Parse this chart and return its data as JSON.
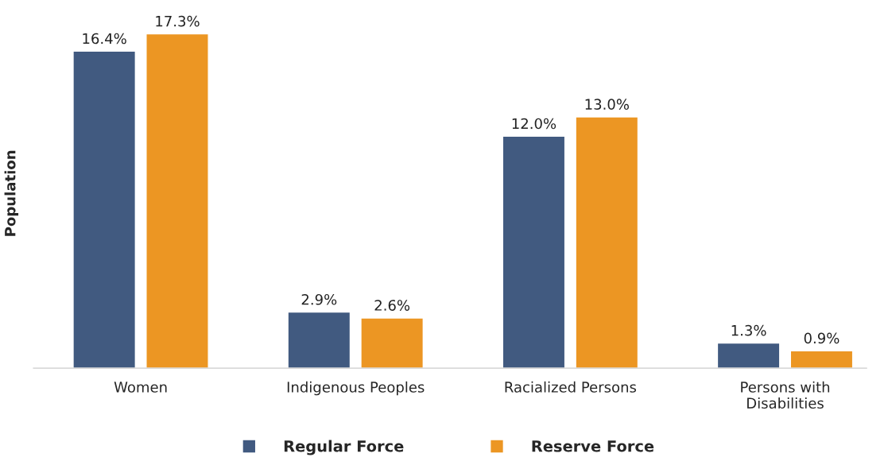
{
  "chart_data": {
    "type": "bar",
    "ylabel": "Population",
    "categories": [
      "Women",
      "Indigenous Peoples",
      "Racialized Persons",
      "Persons with\nDisabilities"
    ],
    "series": [
      {
        "name": "Regular Force",
        "color": "#415a80",
        "values": [
          16.4,
          2.9,
          12.0,
          1.3
        ],
        "value_labels": [
          "16.4%",
          "2.9%",
          "12.0%",
          "1.3%"
        ]
      },
      {
        "name": "Reserve Force",
        "color": "#ec9623",
        "values": [
          17.3,
          2.6,
          13.0,
          0.9
        ],
        "value_labels": [
          "17.3%",
          "2.6%",
          "13.0%",
          "0.9%"
        ]
      }
    ],
    "legend": "bottom",
    "grid": false
  }
}
